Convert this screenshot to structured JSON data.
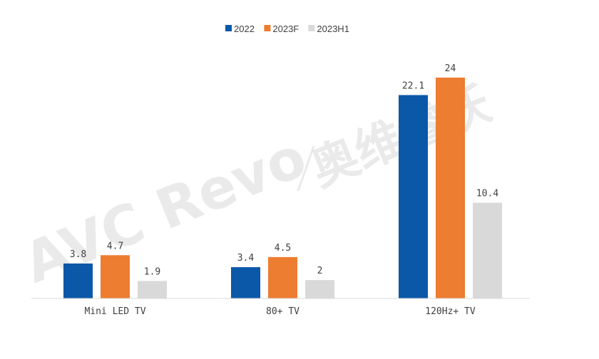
{
  "chart_data": {
    "type": "bar",
    "categories": [
      "Mini LED TV",
      "80+ TV",
      "120Hz+ TV"
    ],
    "series": [
      {
        "name": "2022",
        "values": [
          3.8,
          3.4,
          22.1
        ],
        "labels": [
          "3.8",
          "3.4",
          "22.1"
        ],
        "color": "#0b58a8"
      },
      {
        "name": "2023F",
        "values": [
          4.7,
          4.5,
          24
        ],
        "labels": [
          "4.7",
          "4.5",
          "24"
        ],
        "color": "#ed7d31"
      },
      {
        "name": "2023H1",
        "values": [
          1.9,
          2,
          10.4
        ],
        "labels": [
          "1.9",
          "2",
          "10.4"
        ],
        "color": "#d9d9d9"
      }
    ],
    "title": "",
    "xlabel": "",
    "ylabel": "",
    "ylim": [
      0,
      26
    ],
    "grid": false,
    "legend_position": "top-center"
  },
  "watermark": {
    "brand": "AVC Revo",
    "cn": "奥维睿沃"
  }
}
